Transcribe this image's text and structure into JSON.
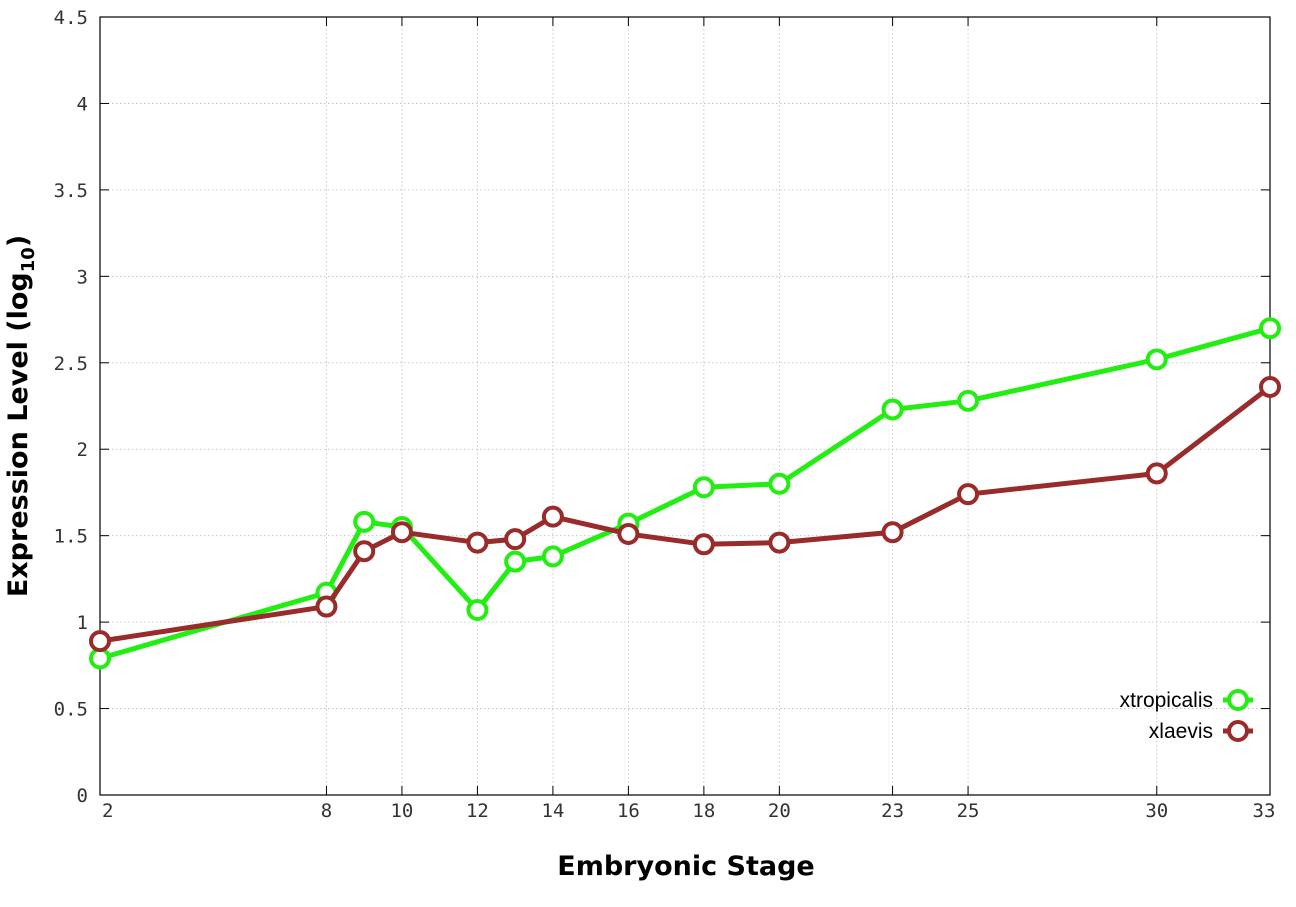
{
  "chart_data": {
    "type": "line",
    "xlabel": "Embryonic Stage",
    "ylabel": "Expression Level (log",
    "ylabel_sub": "10",
    "ylabel_close": ")",
    "xlim": [
      2,
      33
    ],
    "ylim": [
      0,
      4.5
    ],
    "grid": true,
    "legend_position": "bottom-right",
    "x_ticks": [
      "2",
      "8",
      "10",
      "12",
      "14",
      "16",
      "18",
      "20",
      "23",
      "25",
      "30",
      "33"
    ],
    "y_ticks": [
      "0",
      "0.5",
      "1",
      "1.5",
      "2",
      "2.5",
      "3",
      "3.5",
      "4",
      "4.5"
    ],
    "x": [
      2,
      8,
      9,
      10,
      12,
      13,
      14,
      16,
      18,
      20,
      23,
      25,
      30,
      33
    ],
    "series": [
      {
        "name": "xtropicalis",
        "color": "#22ee11",
        "values": [
          0.79,
          1.17,
          1.58,
          1.55,
          1.07,
          1.35,
          1.38,
          1.57,
          1.78,
          1.8,
          2.23,
          2.28,
          2.52,
          2.7
        ]
      },
      {
        "name": "xlaevis",
        "color": "#992b2b",
        "values": [
          0.89,
          1.09,
          1.41,
          1.52,
          1.46,
          1.48,
          1.61,
          1.51,
          1.45,
          1.46,
          1.52,
          1.74,
          1.86,
          2.36
        ]
      }
    ]
  }
}
